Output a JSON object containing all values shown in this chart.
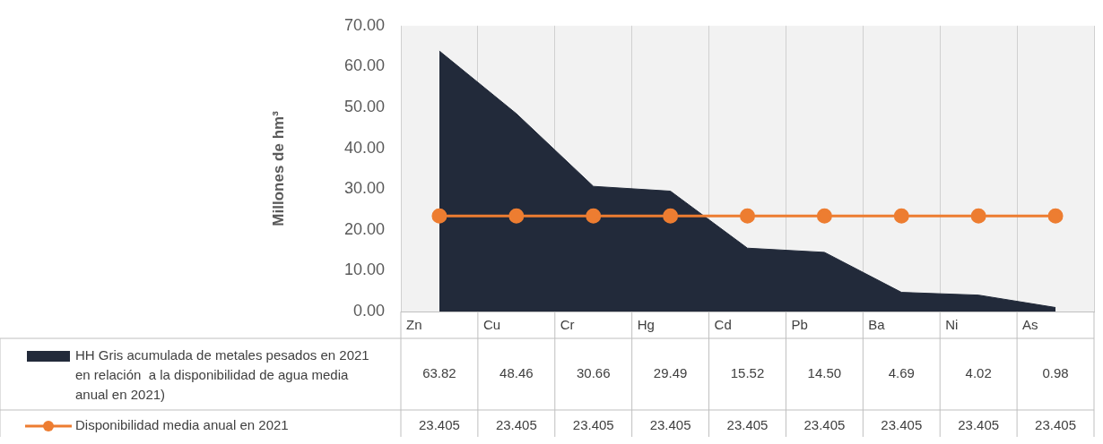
{
  "chart_data": {
    "type": "area",
    "ylabel": "Millones de hm³",
    "categories": [
      "Zn",
      "Cu",
      "Cr",
      "Hg",
      "Cd",
      "Pb",
      "Ba",
      "Ni",
      "As"
    ],
    "series": [
      {
        "name": "HH Gris acumulada de metales pesados en 2021 en relación  a la disponibilidad de agua media anual en 2021)",
        "color": "#222a3a",
        "values": [
          63.82,
          48.46,
          30.66,
          29.49,
          15.52,
          14.5,
          4.69,
          4.02,
          0.98
        ],
        "value_labels": [
          "63.82",
          "48.46",
          "30.66",
          "29.49",
          "15.52",
          "14.50",
          "4.69",
          "4.02",
          "0.98"
        ]
      },
      {
        "name": "Disponibilidad media anual en 2021",
        "type": "line",
        "color": "#ed7d31",
        "marker": "circle",
        "values": [
          23.405,
          23.405,
          23.405,
          23.405,
          23.405,
          23.405,
          23.405,
          23.405,
          23.405
        ],
        "value_labels": [
          "23.405",
          "23.405",
          "23.405",
          "23.405",
          "23.405",
          "23.405",
          "23.405",
          "23.405",
          "23.405"
        ]
      }
    ],
    "ylim": [
      0,
      70
    ],
    "yticks": [
      {
        "value": 0,
        "label": "0.00"
      },
      {
        "value": 10,
        "label": "10.00"
      },
      {
        "value": 20,
        "label": "20.00"
      },
      {
        "value": 30,
        "label": "30.00"
      },
      {
        "value": 40,
        "label": "40.00"
      },
      {
        "value": 50,
        "label": "50.00"
      },
      {
        "value": 60,
        "label": "60.00"
      },
      {
        "value": 70,
        "label": "70.00"
      }
    ],
    "grid": "x",
    "legend": "bottom"
  }
}
